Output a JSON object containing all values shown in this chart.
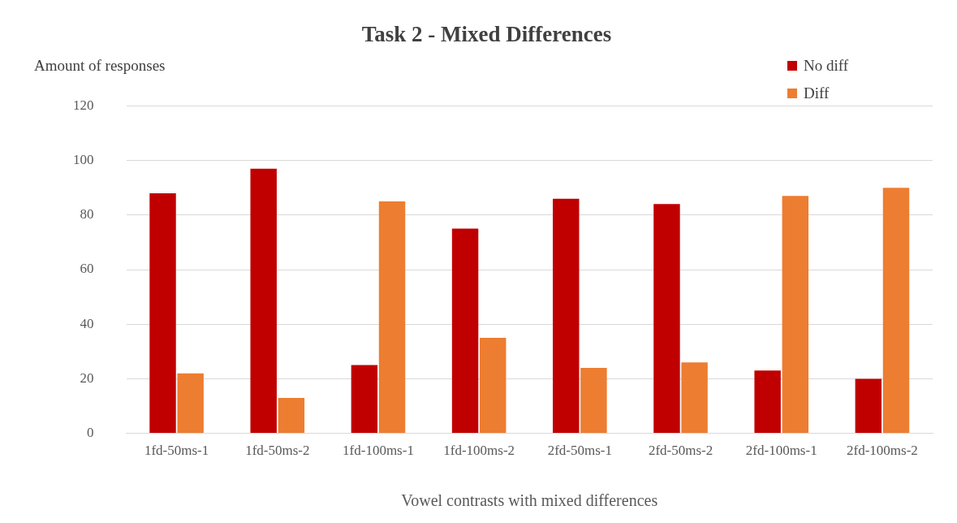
{
  "chart_data": {
    "type": "bar",
    "title": "Task 2 - Mixed Differences",
    "ylabel": "Amount of responses",
    "xlabel": "Vowel contrasts with mixed differences",
    "categories": [
      "1fd-50ms-1",
      "1fd-50ms-2",
      "1fd-100ms-1",
      "1fd-100ms-2",
      "2fd-50ms-1",
      "2fd-50ms-2",
      "2fd-100ms-1",
      "2fd-100ms-2"
    ],
    "series": [
      {
        "name": "No diff",
        "color": "#c00000",
        "values": [
          88,
          97,
          25,
          75,
          86,
          84,
          23,
          20
        ]
      },
      {
        "name": "Diff",
        "color": "#ed7d31",
        "values": [
          22,
          13,
          85,
          35,
          24,
          26,
          87,
          90
        ]
      }
    ],
    "ylim": [
      0,
      120
    ],
    "yticks": [
      0,
      20,
      40,
      60,
      80,
      100,
      120
    ],
    "grid": "y",
    "legend": "top right"
  }
}
